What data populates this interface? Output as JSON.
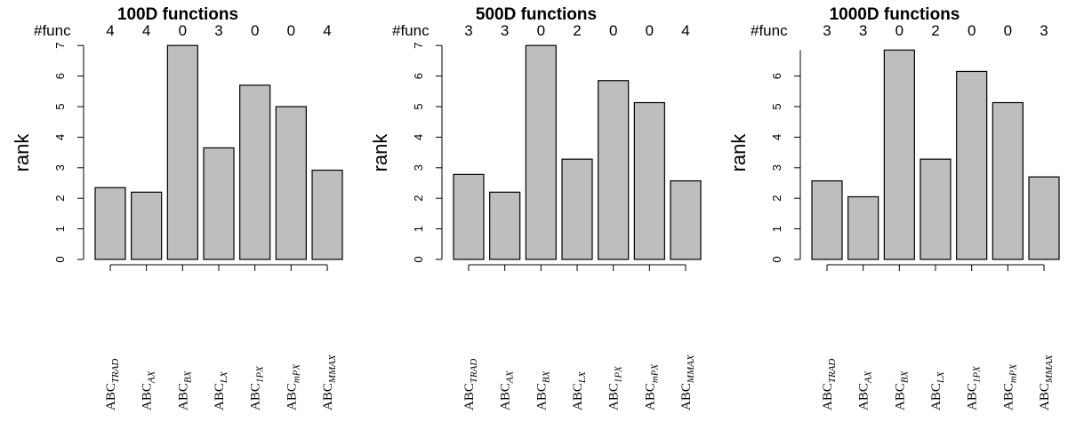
{
  "chart_data": [
    {
      "type": "bar",
      "title": "100D functions",
      "ylabel": "rank",
      "count_label": "#func",
      "categories": [
        {
          "base": "ABC",
          "sub": "TRAD"
        },
        {
          "base": "ABC",
          "sub": "AX"
        },
        {
          "base": "ABC",
          "sub": "BX"
        },
        {
          "base": "ABC",
          "sub": "LX"
        },
        {
          "base": "ABC",
          "sub": "1PX"
        },
        {
          "base": "ABC",
          "sub": "mPX"
        },
        {
          "base": "ABC",
          "sub": "MMAX"
        }
      ],
      "counts": [
        "4",
        "4",
        "0",
        "3",
        "0",
        "0",
        "4"
      ],
      "values": [
        2.35,
        2.2,
        7.0,
        3.65,
        5.7,
        5.0,
        2.92
      ],
      "yticks": [
        "0",
        "1",
        "2",
        "3",
        "4",
        "5",
        "6",
        "7"
      ],
      "ylim": [
        0,
        7
      ]
    },
    {
      "type": "bar",
      "title": "500D functions",
      "ylabel": "rank",
      "count_label": "#func",
      "categories": [
        {
          "base": "ABC",
          "sub": "TRAD"
        },
        {
          "base": "ABC",
          "sub": "AX"
        },
        {
          "base": "ABC",
          "sub": "BX"
        },
        {
          "base": "ABC",
          "sub": "LX"
        },
        {
          "base": "ABC",
          "sub": "1PX"
        },
        {
          "base": "ABC",
          "sub": "mPX"
        },
        {
          "base": "ABC",
          "sub": "MMAX"
        }
      ],
      "counts": [
        "3",
        "3",
        "0",
        "2",
        "0",
        "0",
        "4"
      ],
      "values": [
        2.78,
        2.2,
        7.0,
        3.28,
        5.85,
        5.13,
        2.57
      ],
      "yticks": [
        "0",
        "1",
        "2",
        "3",
        "4",
        "5",
        "6",
        "7"
      ],
      "ylim": [
        0,
        7
      ]
    },
    {
      "type": "bar",
      "title": "1000D functions",
      "ylabel": "rank",
      "count_label": "#func",
      "categories": [
        {
          "base": "ABC",
          "sub": "TRAD"
        },
        {
          "base": "ABC",
          "sub": "AX"
        },
        {
          "base": "ABC",
          "sub": "BX"
        },
        {
          "base": "ABC",
          "sub": "LX"
        },
        {
          "base": "ABC",
          "sub": "1PX"
        },
        {
          "base": "ABC",
          "sub": "mPX"
        },
        {
          "base": "ABC",
          "sub": "MMAX"
        }
      ],
      "counts": [
        "3",
        "3",
        "0",
        "2",
        "0",
        "0",
        "3"
      ],
      "values": [
        2.57,
        2.05,
        6.85,
        3.28,
        6.15,
        5.13,
        2.7
      ],
      "yticks": [
        "0",
        "1",
        "2",
        "3",
        "4",
        "5",
        "6"
      ],
      "ylim": [
        0,
        6.85
      ]
    }
  ],
  "colors": {
    "bar_fill": "#bebebe",
    "bar_stroke": "#000000"
  }
}
